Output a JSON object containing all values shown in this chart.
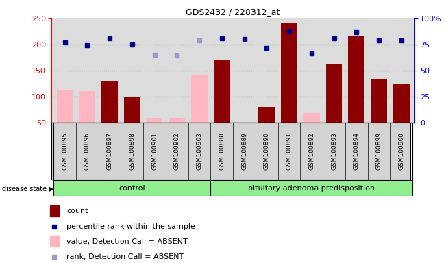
{
  "title": "GDS2432 / 228312_at",
  "samples": [
    "GSM100895",
    "GSM100896",
    "GSM100897",
    "GSM100898",
    "GSM100901",
    "GSM100902",
    "GSM100903",
    "GSM100888",
    "GSM100889",
    "GSM100890",
    "GSM100891",
    "GSM100892",
    "GSM100893",
    "GSM100894",
    "GSM100899",
    "GSM100900"
  ],
  "count_values": [
    null,
    null,
    130,
    100,
    null,
    null,
    null,
    170,
    null,
    80,
    240,
    null,
    162,
    215,
    133,
    125
  ],
  "count_absent": [
    112,
    110,
    null,
    null,
    57,
    57,
    140,
    null,
    null,
    null,
    null,
    68,
    null,
    null,
    null,
    null
  ],
  "rank_values": [
    204,
    198,
    211,
    200,
    null,
    null,
    null,
    212,
    210,
    193,
    226,
    183,
    212,
    223,
    207,
    207
  ],
  "rank_absent": [
    null,
    null,
    null,
    null,
    180,
    178,
    208,
    null,
    null,
    null,
    null,
    null,
    null,
    null,
    null,
    null
  ],
  "ylim": [
    50,
    250
  ],
  "y2lim": [
    0,
    100
  ],
  "yticks": [
    50,
    100,
    150,
    200,
    250
  ],
  "y2ticks": [
    0,
    25,
    50,
    75,
    100
  ],
  "dotted_lines": [
    100,
    150,
    200
  ],
  "color_bar_present": "#8B0000",
  "color_bar_absent": "#FFB6C1",
  "color_dot_present": "#00008B",
  "color_dot_absent": "#9999CC",
  "control_count": 7,
  "legend_items": [
    {
      "label": "count",
      "color": "#8B0000",
      "type": "bar"
    },
    {
      "label": "percentile rank within the sample",
      "color": "#00008B",
      "type": "dot"
    },
    {
      "label": "value, Detection Call = ABSENT",
      "color": "#FFB6C1",
      "type": "bar"
    },
    {
      "label": "rank, Detection Call = ABSENT",
      "color": "#9999CC",
      "type": "dot"
    }
  ]
}
